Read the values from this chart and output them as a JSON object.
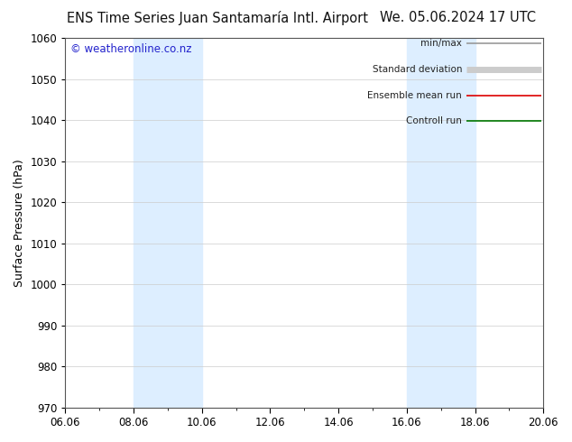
{
  "title_left": "ENS Time Series Juan Santamaría Intl. Airport",
  "title_right": "We. 05.06.2024 17 UTC",
  "ylabel": "Surface Pressure (hPa)",
  "ylim": [
    970,
    1060
  ],
  "yticks": [
    970,
    980,
    990,
    1000,
    1010,
    1020,
    1030,
    1040,
    1050,
    1060
  ],
  "xtick_labels": [
    "06.06",
    "08.06",
    "10.06",
    "12.06",
    "14.06",
    "16.06",
    "18.06",
    "20.06"
  ],
  "xtick_positions": [
    0,
    2,
    4,
    6,
    8,
    10,
    12,
    14
  ],
  "xlim": [
    0,
    14
  ],
  "shaded_bands": [
    {
      "xstart": 2,
      "xend": 3
    },
    {
      "xstart": 3,
      "xend": 4
    },
    {
      "xstart": 10,
      "xend": 11
    },
    {
      "xstart": 11,
      "xend": 12
    }
  ],
  "shaded_color": "#ddeeff",
  "watermark_text": "© weatheronline.co.nz",
  "watermark_color": "#2222cc",
  "legend_entries": [
    {
      "label": "min/max",
      "color": "#999999",
      "lw": 1.2
    },
    {
      "label": "Standard deviation",
      "color": "#cccccc",
      "lw": 5
    },
    {
      "label": "Ensemble mean run",
      "color": "#dd0000",
      "lw": 1.2
    },
    {
      "label": "Controll run",
      "color": "#007700",
      "lw": 1.2
    }
  ],
  "bg_color": "#ffffff",
  "plot_bg_color": "#ffffff",
  "grid_color": "#cccccc",
  "title_fontsize": 10.5,
  "tick_fontsize": 8.5,
  "label_fontsize": 9,
  "watermark_fontsize": 8.5,
  "legend_fontsize": 7.5
}
